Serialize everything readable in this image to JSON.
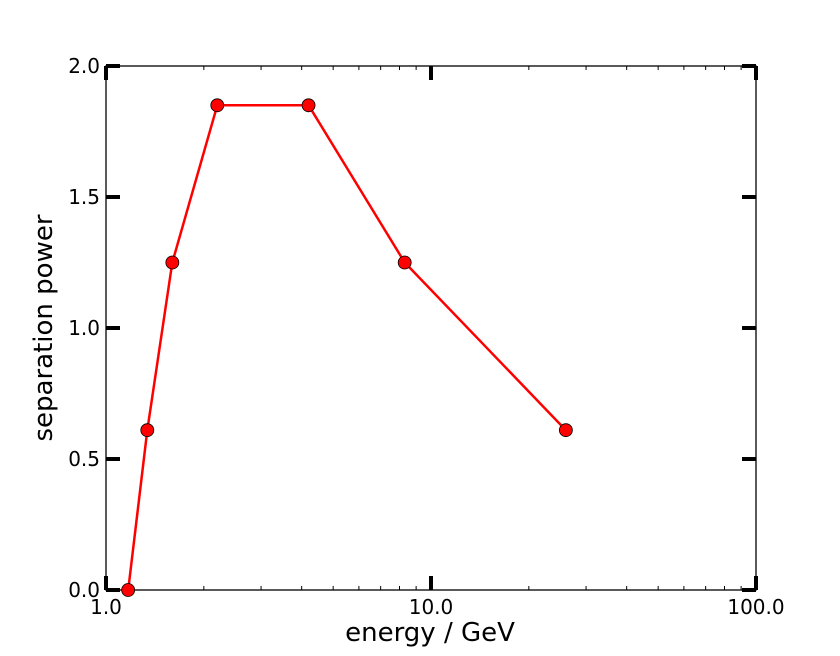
{
  "chart_data": {
    "type": "line",
    "xscale": "log",
    "xlabel": "energy / GeV",
    "ylabel": "separation power",
    "xlim": [
      1.0,
      100.0
    ],
    "ylim": [
      0.0,
      2.0
    ],
    "grid": false,
    "xticks": [
      "1.0",
      "10.0",
      "100.0"
    ],
    "yticks": [
      "0.0",
      "0.5",
      "1.0",
      "1.5",
      "2.0"
    ],
    "series": [
      {
        "color": "#ff0000",
        "marker": "circle",
        "x": [
          1.17,
          1.34,
          1.6,
          2.2,
          4.2,
          8.3,
          26.0
        ],
        "y": [
          0.0,
          0.61,
          1.25,
          1.85,
          1.85,
          1.25,
          0.61
        ]
      }
    ]
  }
}
